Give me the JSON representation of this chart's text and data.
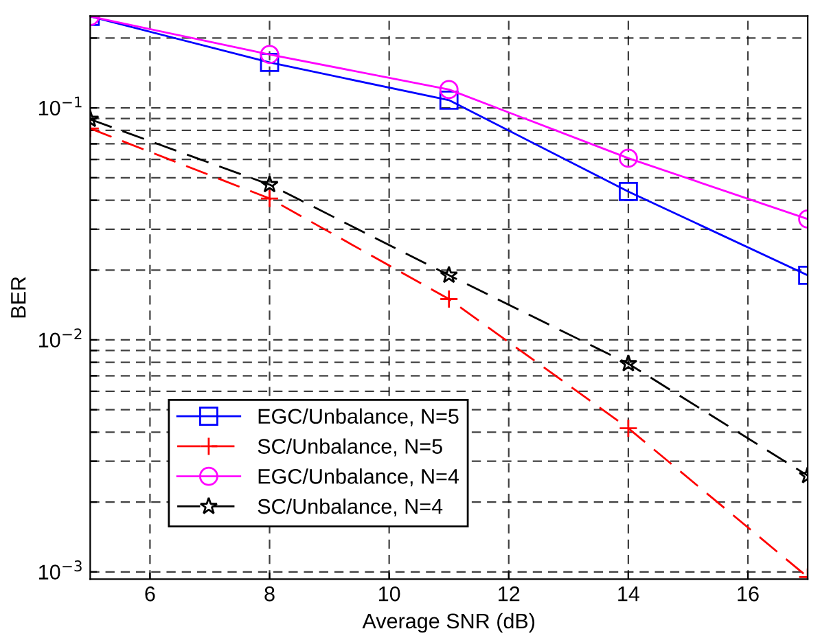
{
  "chart_data": {
    "type": "line",
    "xlabel": "Average SNR (dB)",
    "ylabel": "BER",
    "x": [
      5,
      8,
      11,
      14,
      17
    ],
    "series": [
      {
        "name": "EGC/Unbalance, N=5",
        "color": "#0000ff",
        "marker": "square",
        "line_style": "solid",
        "values": [
          0.248,
          0.157,
          0.108,
          0.0436,
          0.019
        ]
      },
      {
        "name": "SC/Unbalance, N=5",
        "color": "#ff0000",
        "marker": "cross",
        "line_style": "dashed",
        "values": [
          0.0815,
          0.0407,
          0.015,
          0.00416,
          0.00095
        ]
      },
      {
        "name": "EGC/Unbalance, N=4",
        "color": "#ff00ff",
        "marker": "circle",
        "line_style": "solid",
        "values": [
          0.248,
          0.17,
          0.12,
          0.0607,
          0.0332
        ]
      },
      {
        "name": "SC/Unbalance, N=4",
        "color": "#000000",
        "marker": "star",
        "line_style": "dashed",
        "values": [
          0.0893,
          0.0467,
          0.019,
          0.0079,
          0.0026
        ]
      }
    ],
    "log": "y",
    "xlim": [
      5,
      17
    ],
    "xticks": [
      6,
      8,
      10,
      12,
      14,
      16
    ],
    "ylim": [
      0.00093,
      0.249
    ],
    "yticks": [
      {
        "value": 0.001,
        "label": "10$^{−3}$"
      },
      {
        "value": 0.002,
        "label": null
      },
      {
        "value": 0.003,
        "label": null
      },
      {
        "value": 0.004,
        "label": null
      },
      {
        "value": 0.005,
        "label": null
      },
      {
        "value": 0.006,
        "label": null
      },
      {
        "value": 0.007,
        "label": null
      },
      {
        "value": 0.008,
        "label": null
      },
      {
        "value": 0.009,
        "label": null
      },
      {
        "value": 0.01,
        "label": "10$^{−2}$"
      },
      {
        "value": 0.02,
        "label": null
      },
      {
        "value": 0.03,
        "label": null
      },
      {
        "value": 0.04,
        "label": null
      },
      {
        "value": 0.05,
        "label": null
      },
      {
        "value": 0.06,
        "label": null
      },
      {
        "value": 0.07,
        "label": null
      },
      {
        "value": 0.08,
        "label": null
      },
      {
        "value": 0.09,
        "label": null
      },
      {
        "value": 0.1,
        "label": "10$^{−1}$"
      },
      {
        "value": 0.2,
        "label": null
      }
    ],
    "grid": true,
    "legend": "bottom left"
  }
}
